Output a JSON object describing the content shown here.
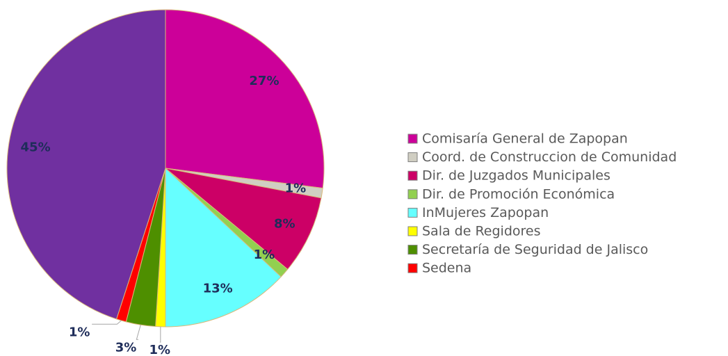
{
  "chart_data": {
    "type": "pie",
    "categories": [
      "Comisaría General de Zapopan",
      "Coord. de Construccion de Comunidad",
      "Dir. de Juzgados Municipales",
      "Dir. de Promoción  Económica",
      "InMujeres Zapopan",
      "Sala de Regidores",
      "Secretaría de Seguridad de Jalisco",
      "Sedena",
      null
    ],
    "values": [
      27,
      1,
      8,
      1,
      13,
      1,
      3,
      1,
      45
    ],
    "value_labels": [
      "27%",
      "1%",
      "8%",
      "1%",
      "13%",
      "1%",
      "3%",
      "1%",
      "45%"
    ],
    "colors": [
      "#cc0099",
      "#d0cec2",
      "#cc0066",
      "#92d050",
      "#66ffff",
      "#ffff00",
      "#4e8f00",
      "#ff0000",
      "#7030a0"
    ],
    "legend": "right"
  }
}
